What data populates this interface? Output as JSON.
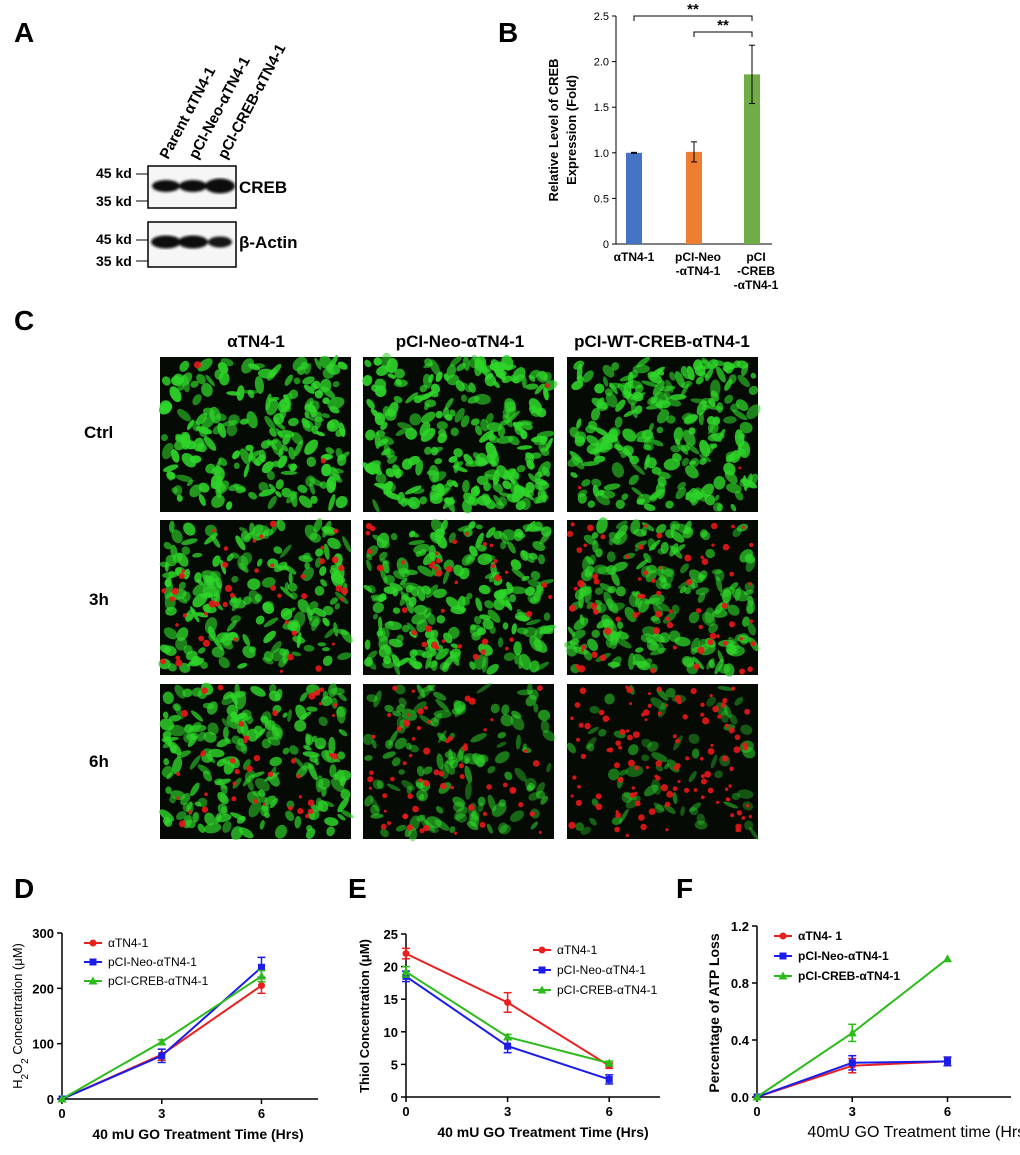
{
  "panel_labels": {
    "A": "A",
    "B": "B",
    "C": "C",
    "D": "D",
    "E": "E",
    "F": "F"
  },
  "colors": {
    "red": "#e8201f",
    "blue": "#1c1ce8",
    "green": "#2dbb1b",
    "bar_blue": "#4472c4",
    "bar_orange": "#ed7d31",
    "bar_green": "#70ad47",
    "cell_green": "#2fd62a",
    "cell_red": "#e81818"
  },
  "panel_a": {
    "lanes": [
      "Parent αTN4-1",
      "pCI-Neo-αTN4-1",
      "pCI-CREB-αTN4-1"
    ],
    "blot1": {
      "mw_top": "45 kd",
      "mw_bottom": "35 kd",
      "protein": "CREB"
    },
    "blot2": {
      "mw_top": "45 kd",
      "mw_bottom": "35 kd",
      "protein": "β-Actin"
    }
  },
  "panel_c": {
    "columns": [
      "αTN4-1",
      "pCI-Neo-αTN4-1",
      "pCI-WT-CREB-αTN4-1"
    ],
    "rows": [
      "Ctrl",
      "3h",
      "6h"
    ]
  },
  "chart_data": [
    {
      "panel": "B",
      "type": "bar",
      "categories": [
        [
          "αTN4-1"
        ],
        [
          "pCI-Neo",
          "-αTN4-1"
        ],
        [
          "pCI",
          "-CREB",
          "-αTN4-1"
        ]
      ],
      "values": [
        1.0,
        1.01,
        1.86
      ],
      "errors": [
        0.005,
        0.11,
        0.32
      ],
      "ylabel": [
        "Relative Level of CREB",
        "Expression (Fold)"
      ],
      "ylim": [
        0,
        2.5
      ],
      "yticks": [
        "0",
        "0.5",
        "1.0",
        "1.5",
        "2.0",
        "2.5"
      ],
      "significance": [
        {
          "from": 0,
          "to": 2,
          "label": "**"
        },
        {
          "from": 1,
          "to": 2,
          "label": "**"
        }
      ]
    },
    {
      "panel": "D",
      "type": "line",
      "x": [
        0,
        3,
        6
      ],
      "xticks": [
        "0",
        "3",
        "6"
      ],
      "xlabel": "40 mU GO Treatment Time (Hrs)",
      "ylabel": "H2O2 Concentration (μM)",
      "ylim": [
        0,
        300
      ],
      "yticks": [
        "0",
        "100",
        "200",
        "300"
      ],
      "legend_position": "top-left",
      "series": [
        {
          "name": "αTN4-1",
          "values": [
            0,
            80,
            205
          ],
          "errors": [
            0,
            10,
            14
          ]
        },
        {
          "name": "pCI-Neo-αTN4-1",
          "values": [
            0,
            78,
            238
          ],
          "errors": [
            0,
            12,
            18
          ]
        },
        {
          "name": "pCI-CREB-αTN4-1",
          "values": [
            0,
            103,
            222
          ],
          "errors": [
            0,
            4,
            10
          ]
        }
      ]
    },
    {
      "panel": "E",
      "type": "line",
      "x": [
        0,
        3,
        6
      ],
      "xticks": [
        "0",
        "3",
        "6"
      ],
      "xlabel": "40 mU GO Treatment Time (Hrs)",
      "ylabel": "Thiol Concentration (μM)",
      "ylim": [
        0,
        25
      ],
      "yticks": [
        "0",
        "5",
        "10",
        "15",
        "20",
        "25"
      ],
      "legend_position": "top-right",
      "series": [
        {
          "name": "αTN4-1",
          "values": [
            22,
            14.5,
            4.8
          ],
          "errors": [
            0.8,
            1.5,
            0.4
          ]
        },
        {
          "name": "pCI-Neo-αTN4-1",
          "values": [
            18.5,
            7.8,
            2.7
          ],
          "errors": [
            0.8,
            1,
            0.7
          ]
        },
        {
          "name": "pCI-CREB-αTN4-1",
          "values": [
            19.2,
            9.2,
            5.2
          ],
          "errors": [
            0.8,
            0.4,
            0.3
          ]
        }
      ]
    },
    {
      "panel": "F",
      "type": "line",
      "x": [
        0,
        3,
        6
      ],
      "xticks": [
        "0",
        "3",
        "6"
      ],
      "xlabel": "40mU GO Treatment time (Hrs)",
      "ylabel": "Percentage of ATP Loss",
      "ylim": [
        0,
        1.2
      ],
      "yticks": [
        "0.0",
        "0.4",
        "0.8",
        "1.2"
      ],
      "legend_position": "top-left",
      "series": [
        {
          "name": "αTN4- 1",
          "values": [
            0,
            0.22,
            0.25
          ],
          "errors": [
            0,
            0.05,
            0.03
          ]
        },
        {
          "name": "pCI-Neo-αTN4-1",
          "values": [
            0,
            0.24,
            0.25
          ],
          "errors": [
            0,
            0.05,
            0.03
          ]
        },
        {
          "name": "pCI-CREB-αTN4-1",
          "values": [
            0,
            0.45,
            0.97
          ],
          "errors": [
            0,
            0.06,
            0
          ]
        }
      ]
    }
  ]
}
